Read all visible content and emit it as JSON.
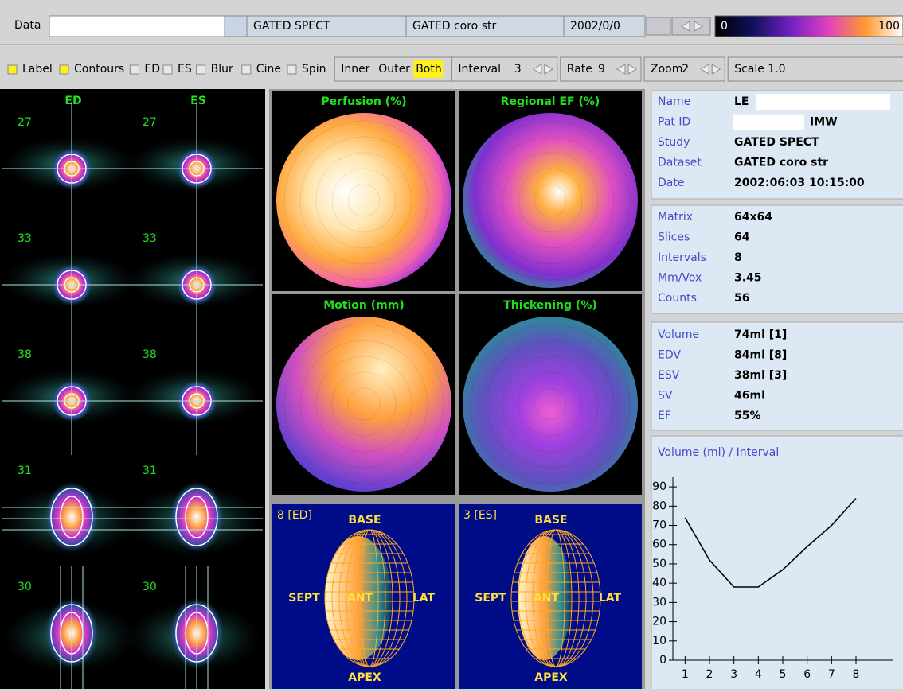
{
  "toolbar": {
    "data_label": "Data",
    "study": "GATED SPECT",
    "dataset": "GATED coro str",
    "date": "2002/0/0",
    "colorbar_min": "0",
    "colorbar_max": "100"
  },
  "options": {
    "checkboxes": [
      {
        "label": "Label",
        "checked": true
      },
      {
        "label": "Contours",
        "checked": true
      },
      {
        "label": "ED",
        "checked": false
      },
      {
        "label": "ES",
        "checked": false
      },
      {
        "label": "Blur",
        "checked": false
      },
      {
        "label": "Cine",
        "checked": false
      },
      {
        "label": "Spin",
        "checked": false
      }
    ],
    "contour_modes": [
      "Inner",
      "Outer",
      "Both"
    ],
    "selected_mode_index": 2,
    "steppers": [
      {
        "label": "Interval",
        "value": "3"
      },
      {
        "label": "Rate",
        "value": "9"
      },
      {
        "label": "Zoom",
        "value": "2"
      }
    ],
    "scale": "Scale 1.0"
  },
  "slices": {
    "headers": [
      "ED",
      "ES"
    ],
    "rows": [
      "27",
      "33",
      "38",
      "31",
      "30"
    ]
  },
  "polar_maps": [
    "Perfusion (%)",
    "Regional EF (%)",
    "Motion (mm)",
    "Thickening (%)"
  ],
  "surfaces": [
    "8 [ED]",
    "3 [ES]"
  ],
  "orientation": {
    "base": "BASE",
    "sept": "SEPT",
    "ant": "ANT",
    "lat": "LAT",
    "apex": "APEX"
  },
  "patient": [
    [
      "Name",
      "LE"
    ],
    [
      "Pat ID",
      "IMW"
    ],
    [
      "Study",
      "GATED SPECT"
    ],
    [
      "Dataset",
      "GATED coro str"
    ],
    [
      "Date",
      "2002:06:03 10:15:00"
    ]
  ],
  "acquisition": [
    [
      "Matrix",
      "64x64"
    ],
    [
      "Slices",
      "64"
    ],
    [
      "Intervals",
      "8"
    ],
    [
      "Mm/Vox",
      "3.45"
    ],
    [
      "Counts",
      "56"
    ]
  ],
  "function": [
    [
      "Volume",
      "74ml [1]"
    ],
    [
      "EDV",
      "84ml [8]"
    ],
    [
      "ESV",
      "38ml [3]"
    ],
    [
      "SV",
      "46ml"
    ],
    [
      "EF",
      "55%"
    ]
  ],
  "chart_data": {
    "type": "line",
    "title": "Volume (ml) / Interval",
    "x": [
      1,
      2,
      3,
      4,
      5,
      6,
      7,
      8
    ],
    "values": [
      74,
      52,
      38,
      38,
      47,
      59,
      70,
      84
    ],
    "color": "#000000",
    "xlim": [
      0.5,
      9.5
    ],
    "ylim": [
      0,
      95
    ],
    "xticks": [
      1,
      2,
      3,
      4,
      5,
      6,
      7,
      8
    ],
    "yticks": [
      0,
      10,
      20,
      30,
      40,
      50,
      60,
      70,
      80,
      90
    ]
  }
}
